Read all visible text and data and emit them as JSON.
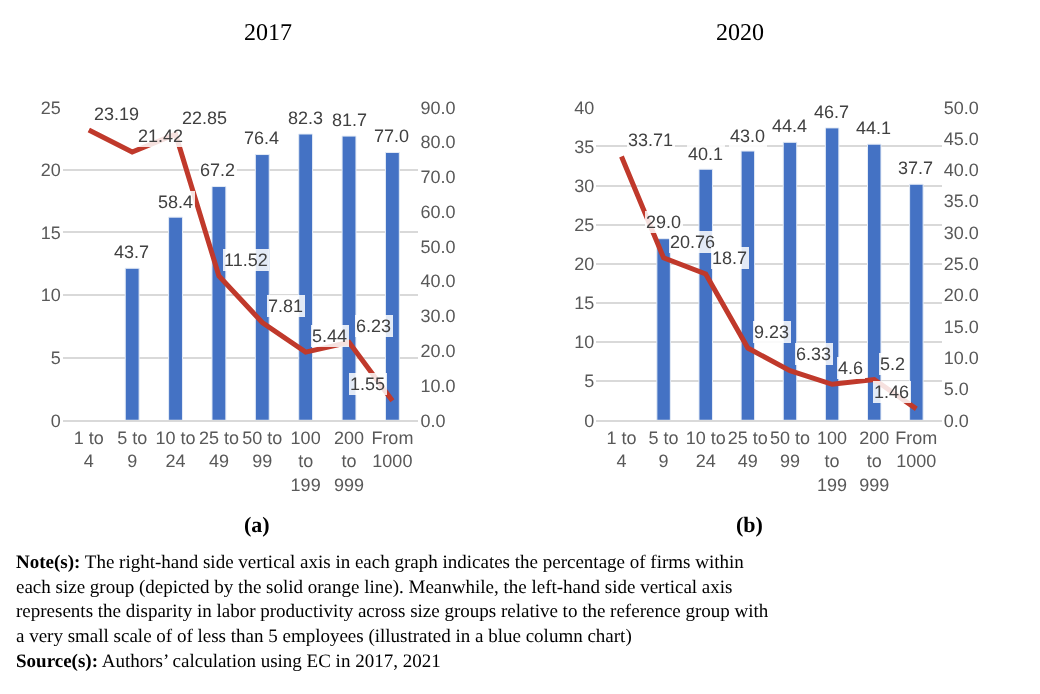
{
  "chart_data": [
    {
      "type": "bar",
      "title": "2017",
      "categories": [
        "1 to 4",
        "5 to 9",
        "10 to 24",
        "25 to 49",
        "50 to 99",
        "100 to 199",
        "200 to 999",
        "From 1000"
      ],
      "series": [
        {
          "axis": "y2",
          "color": "#4472c4",
          "values": [
            null,
            43.7,
            58.4,
            67.2,
            76.4,
            82.3,
            81.7,
            77.0
          ],
          "value_labels": [
            null,
            "43.7",
            "58.4",
            "67.2",
            "76.4",
            "82.3",
            "81.7",
            "77.0"
          ]
        },
        {
          "type": "line",
          "axis": "y",
          "color": "#c0392b",
          "values": [
            23.19,
            21.42,
            22.85,
            11.52,
            7.81,
            5.44,
            6.23,
            1.55
          ]
        }
      ],
      "ylim": [
        0,
        25
      ],
      "yticks": [
        0,
        5,
        10,
        15,
        20,
        25
      ],
      "y2lim": [
        0,
        90
      ],
      "y2ticks": [
        {
          "value": 0,
          "label": "0.0"
        },
        {
          "value": 10,
          "label": "10.0"
        },
        {
          "value": 20,
          "label": "20.0"
        },
        {
          "value": 30,
          "label": "30.0"
        },
        {
          "value": 40,
          "label": "40.0"
        },
        {
          "value": 50,
          "label": "50.0"
        },
        {
          "value": 60,
          "label": "60.0"
        },
        {
          "value": 70,
          "label": "70.0"
        },
        {
          "value": 80,
          "label": "80.0"
        },
        {
          "value": 90,
          "label": "90.0"
        }
      ],
      "grid": "y",
      "data_labels": true,
      "marker": "none",
      "line_style": "solid",
      "annotations": [
        "(a)",
        "Note(s): The right-hand side vertical axis in each graph indicates the percentage of firms within each size group (depicted by the solid orange line). Meanwhile, the left-hand side vertical axis represents the disparity in labor productivity across size groups relative to the reference group with a very small scale of of less than 5 employees (illustrated in a blue column chart)",
        "Source(s): Authors’ calculation using EC in 2017, 2021"
      ]
    },
    {
      "type": "bar",
      "title": "2020",
      "categories": [
        "1 to 4",
        "5 to 9",
        "10 to 24",
        "25 to 49",
        "50 to 99",
        "100 to 199",
        "200 to 999",
        "From 1000"
      ],
      "series": [
        {
          "axis": "y2",
          "color": "#4472c4",
          "values": [
            null,
            29.0,
            40.1,
            43.0,
            44.4,
            46.7,
            44.1,
            37.7
          ],
          "value_labels": [
            null,
            "29.0",
            "40.1",
            "43.0",
            "44.4",
            "46.7",
            "44.1",
            "37.7"
          ]
        },
        {
          "type": "line",
          "axis": "y",
          "color": "#c0392b",
          "values": [
            33.71,
            20.76,
            18.7,
            9.23,
            6.33,
            4.6,
            5.2,
            1.46
          ]
        }
      ],
      "ylim": [
        0,
        40
      ],
      "yticks": [
        0,
        5,
        10,
        15,
        20,
        25,
        30,
        35,
        40
      ],
      "y2lim": [
        0,
        50
      ],
      "y2ticks": [
        {
          "value": 0,
          "label": "0.0"
        },
        {
          "value": 5,
          "label": "5.0"
        },
        {
          "value": 10,
          "label": "10.0"
        },
        {
          "value": 15,
          "label": "15.0"
        },
        {
          "value": 20,
          "label": "20.0"
        },
        {
          "value": 25,
          "label": "25.0"
        },
        {
          "value": 30,
          "label": "30.0"
        },
        {
          "value": 35,
          "label": "35.0"
        },
        {
          "value": 40,
          "label": "40.0"
        },
        {
          "value": 45,
          "label": "45.0"
        },
        {
          "value": 50,
          "label": "50.0"
        }
      ],
      "grid": "y",
      "data_labels": true,
      "marker": "none",
      "line_style": "solid",
      "annotations": [
        "(b)"
      ]
    }
  ]
}
